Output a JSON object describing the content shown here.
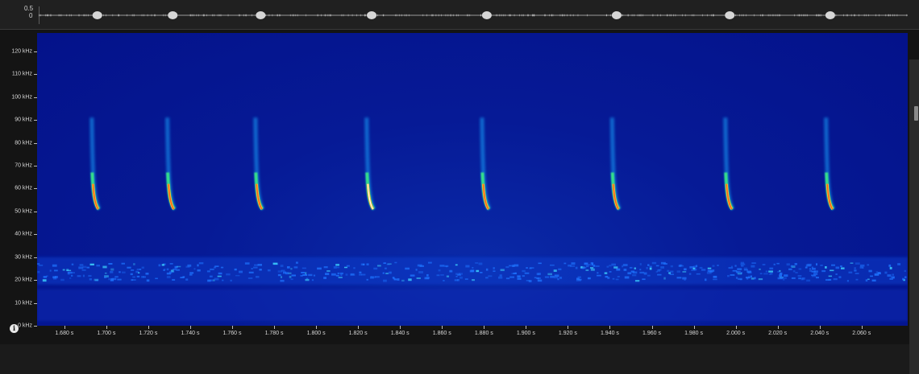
{
  "waveform": {
    "amplitude_labels": [
      "0.5",
      "0"
    ]
  },
  "spectrogram": {
    "frequency_labels": [
      "120 kHz",
      "110 kHz",
      "100 kHz",
      "90 kHz",
      "80 kHz",
      "70 kHz",
      "60 kHz",
      "50 kHz",
      "40 kHz",
      "30 kHz",
      "20 kHz",
      "10 kHz",
      "0 kHz"
    ],
    "time_labels": [
      "1.680 s",
      "1.700 s",
      "1.720 s",
      "1.740 s",
      "1.760 s",
      "1.780 s",
      "1.800 s",
      "1.820 s",
      "1.840 s",
      "1.860 s",
      "1.880 s",
      "1.900 s",
      "1.920 s",
      "1.940 s",
      "1.960 s",
      "1.980 s",
      "2.000 s",
      "2.020 s",
      "2.040 s",
      "2.060 s"
    ],
    "call_times_s": [
      1.695,
      1.731,
      1.773,
      1.826,
      1.881,
      1.943,
      1.997,
      2.045
    ],
    "call_end_khz": 51,
    "background_noise_band_khz": [
      20,
      28
    ]
  },
  "colors": {
    "spectrogram_bg": "#04128a",
    "call_core": "#ffffff",
    "call_hot": "#ff5a2a",
    "call_warm": "#ffd21f",
    "call_mid": "#35e08a",
    "call_cool": "#19a8ff"
  },
  "icons": {
    "info": "info-icon"
  }
}
